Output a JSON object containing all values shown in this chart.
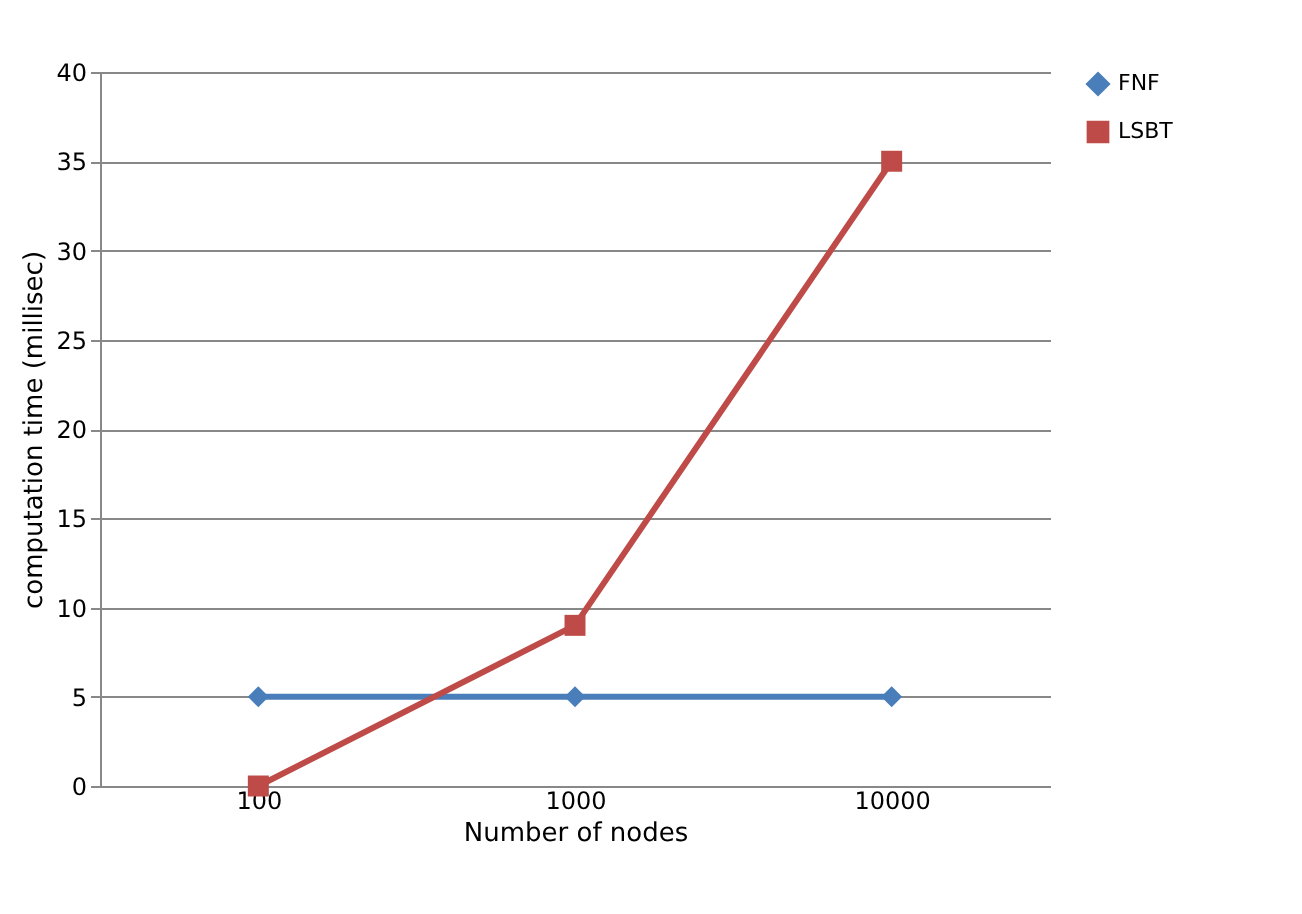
{
  "chart_data": {
    "type": "line",
    "xlabel": "Number of nodes",
    "ylabel": "computation time (millisec)",
    "categories": [
      "100",
      "1000",
      "10000"
    ],
    "series": [
      {
        "name": "FNF",
        "color": "#4a7ebb",
        "marker": "diamond",
        "values": [
          5,
          5,
          5
        ]
      },
      {
        "name": "LSBT",
        "color": "#be4b48",
        "marker": "square",
        "values": [
          0,
          9,
          35
        ]
      }
    ],
    "ylim": [
      0,
      40
    ],
    "yticks": [
      0,
      5,
      10,
      15,
      20,
      25,
      30,
      35,
      40
    ],
    "grid": "y",
    "legend": "right"
  }
}
